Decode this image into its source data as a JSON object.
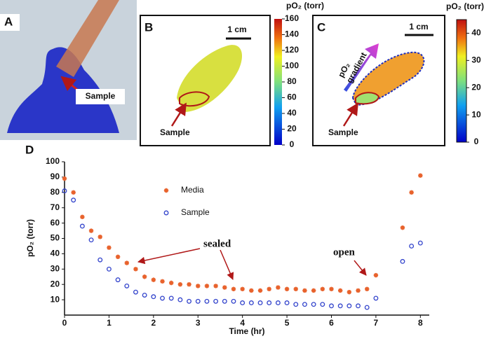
{
  "figure": {
    "panel_a": {
      "label": "A",
      "sample_label": "Sample"
    },
    "panel_b": {
      "label": "B",
      "scale_label": "1 cm",
      "sample_label": "Sample",
      "colorbar": {
        "title": "pO₂ (torr)",
        "lim": [
          0,
          160
        ],
        "ticks": [
          0,
          20,
          40,
          60,
          80,
          100,
          120,
          140,
          160
        ]
      }
    },
    "panel_c": {
      "label": "C",
      "scale_label": "1 cm",
      "sample_label": "Sample",
      "gradient_label": [
        "pO₂",
        "gradient"
      ],
      "colorbar": {
        "title": "pO₂ (torr)",
        "lim": [
          0,
          45
        ],
        "ticks": [
          0,
          10,
          20,
          30,
          40
        ]
      }
    },
    "panel_d": {
      "label": "D"
    }
  },
  "chart_data": {
    "type": "scatter",
    "x_label": "Time (hr)",
    "y_label": "pO₂ (torr)",
    "x": [
      0,
      0.2,
      0.4,
      0.6,
      0.8,
      1.0,
      1.2,
      1.4,
      1.6,
      1.8,
      2.0,
      2.2,
      2.4,
      2.6,
      2.8,
      3.0,
      3.2,
      3.4,
      3.6,
      3.8,
      4.0,
      4.2,
      4.4,
      4.6,
      4.8,
      5.0,
      5.2,
      5.4,
      5.6,
      5.8,
      6.0,
      6.2,
      6.4,
      6.6,
      6.8,
      7.0,
      7.6,
      7.8,
      8.0
    ],
    "series": [
      {
        "name": "Media",
        "color": "#e8622c",
        "marker": "star",
        "values": [
          89,
          80,
          64,
          55,
          51,
          44,
          38,
          34,
          30,
          25,
          23,
          22,
          21,
          20,
          20,
          19,
          19,
          19,
          18,
          17,
          17,
          16,
          16,
          17,
          18,
          17,
          17,
          16,
          16,
          17,
          17,
          16,
          15,
          16,
          17,
          26,
          57,
          80,
          91
        ]
      },
      {
        "name": "Sample",
        "color": "#3344cc",
        "marker": "circle",
        "values": [
          81,
          75,
          58,
          49,
          36,
          30,
          23,
          19,
          15,
          13,
          12,
          11,
          11,
          10,
          9,
          9,
          9,
          9,
          9,
          9,
          8,
          8,
          8,
          8,
          8,
          8,
          7,
          7,
          7,
          7,
          6,
          6,
          6,
          6,
          5,
          11,
          35,
          45,
          47
        ]
      }
    ],
    "annotations": [
      "sealed",
      "open"
    ],
    "xlim": [
      0,
      8.2
    ],
    "xticks": [
      0,
      1,
      2,
      3,
      4,
      5,
      6,
      7,
      8
    ],
    "ylim": [
      0,
      100
    ],
    "yticks": [
      10,
      20,
      30,
      40,
      50,
      60,
      70,
      80,
      90,
      100
    ]
  }
}
